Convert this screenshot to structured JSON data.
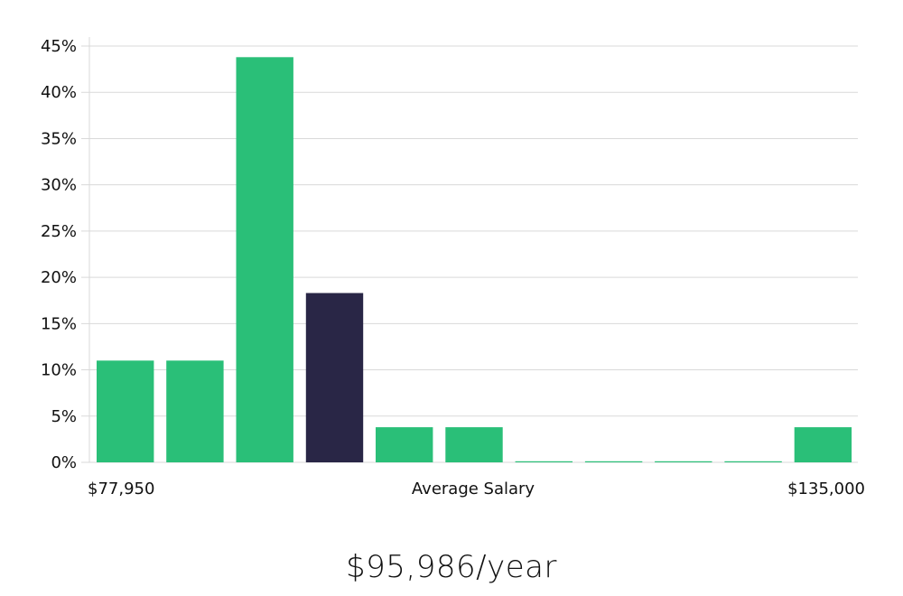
{
  "chart_data": {
    "type": "bar",
    "values": [
      11,
      11,
      43.8,
      18.3,
      3.8,
      3.8,
      0,
      0,
      0,
      0,
      3.8
    ],
    "highlight_index": 3,
    "ylim": [
      0,
      45
    ],
    "yticks": [
      "0%",
      "5%",
      "10%",
      "15%",
      "20%",
      "25%",
      "30%",
      "35%",
      "40%",
      "45%"
    ],
    "x_labels": {
      "left": "$77,950",
      "center": "Average Salary",
      "right": "$135,000"
    },
    "grid": true,
    "colors": {
      "bar": "#2abf78",
      "highlight": "#292646",
      "grid": "#d9d9d9"
    }
  },
  "headline": "$95,986/year"
}
